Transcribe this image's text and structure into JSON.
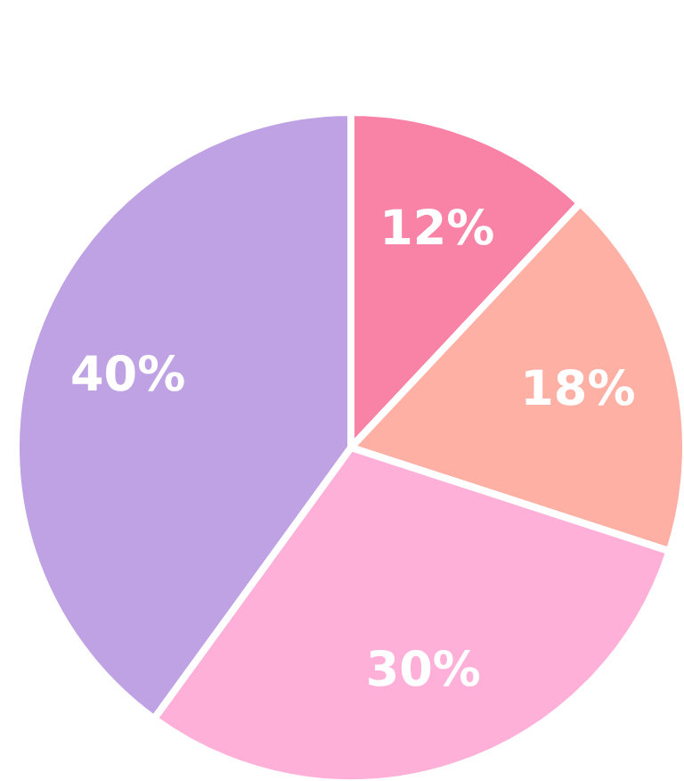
{
  "chart_data": {
    "type": "pie",
    "categories": [
      null,
      null,
      null,
      null
    ],
    "values": [
      12,
      18,
      30,
      40
    ],
    "colors": [
      "#f983a7",
      "#ffb0a5",
      "#ffb0d9",
      "#bea2e3"
    ],
    "value_labels": [
      "12%",
      "18%",
      "30%",
      "40%"
    ]
  }
}
